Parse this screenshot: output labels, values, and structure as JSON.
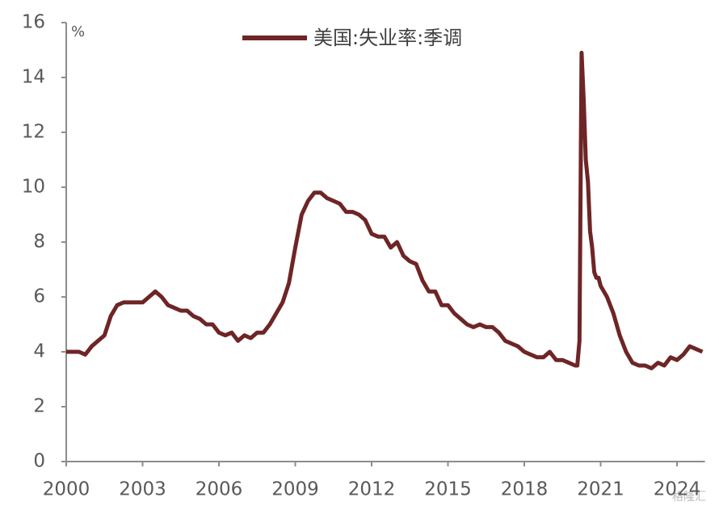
{
  "chart_data": {
    "type": "line",
    "unit_label": "%",
    "watermark": "格隆汇",
    "x": [
      2000,
      2000.25,
      2000.5,
      2000.75,
      2001,
      2001.25,
      2001.5,
      2001.75,
      2002,
      2002.25,
      2002.5,
      2002.75,
      2003,
      2003.25,
      2003.5,
      2003.75,
      2004,
      2004.25,
      2004.5,
      2004.75,
      2005,
      2005.25,
      2005.5,
      2005.75,
      2006,
      2006.25,
      2006.5,
      2006.75,
      2007,
      2007.25,
      2007.5,
      2007.75,
      2008,
      2008.25,
      2008.5,
      2008.75,
      2009,
      2009.25,
      2009.5,
      2009.75,
      2010,
      2010.25,
      2010.5,
      2010.75,
      2011,
      2011.25,
      2011.5,
      2011.75,
      2012,
      2012.25,
      2012.5,
      2012.75,
      2013,
      2013.25,
      2013.5,
      2013.75,
      2014,
      2014.25,
      2014.5,
      2014.75,
      2015,
      2015.25,
      2015.5,
      2015.75,
      2016,
      2016.25,
      2016.5,
      2016.75,
      2017,
      2017.25,
      2017.5,
      2017.75,
      2018,
      2018.25,
      2018.5,
      2018.75,
      2019,
      2019.25,
      2019.5,
      2019.75,
      2020,
      2020.083,
      2020.167,
      2020.25,
      2020.333,
      2020.417,
      2020.5,
      2020.583,
      2020.667,
      2020.75,
      2020.833,
      2020.917,
      2021,
      2021.25,
      2021.5,
      2021.75,
      2022,
      2022.25,
      2022.5,
      2022.75,
      2023,
      2023.25,
      2023.5,
      2023.75,
      2024,
      2024.25,
      2024.5,
      2024.75,
      2025
    ],
    "series": [
      {
        "name": "美国:失业率:季调",
        "color": "#6e2526",
        "values": [
          4.0,
          4.0,
          4.0,
          3.9,
          4.2,
          4.4,
          4.6,
          5.3,
          5.7,
          5.8,
          5.8,
          5.8,
          5.8,
          6.0,
          6.2,
          6.0,
          5.7,
          5.6,
          5.5,
          5.5,
          5.3,
          5.2,
          5.0,
          5.0,
          4.7,
          4.6,
          4.7,
          4.4,
          4.6,
          4.5,
          4.7,
          4.7,
          5.0,
          5.4,
          5.8,
          6.5,
          7.8,
          9.0,
          9.5,
          9.8,
          9.8,
          9.6,
          9.5,
          9.4,
          9.1,
          9.1,
          9.0,
          8.8,
          8.3,
          8.2,
          8.2,
          7.8,
          8.0,
          7.5,
          7.3,
          7.2,
          6.6,
          6.2,
          6.2,
          5.7,
          5.7,
          5.4,
          5.2,
          5.0,
          4.9,
          5.0,
          4.9,
          4.9,
          4.7,
          4.4,
          4.3,
          4.2,
          4.0,
          3.9,
          3.8,
          3.8,
          4.0,
          3.7,
          3.7,
          3.6,
          3.5,
          3.5,
          4.4,
          14.9,
          13.2,
          11.0,
          10.2,
          8.4,
          7.8,
          6.9,
          6.7,
          6.7,
          6.4,
          6.0,
          5.4,
          4.6,
          4.0,
          3.6,
          3.5,
          3.5,
          3.4,
          3.6,
          3.5,
          3.8,
          3.7,
          3.9,
          4.2,
          4.1,
          4.0
        ]
      }
    ],
    "xlim": [
      2000,
      2025.1
    ],
    "xticks": [
      2000,
      2003,
      2006,
      2009,
      2012,
      2015,
      2018,
      2021,
      2024
    ],
    "ylim": [
      0,
      16
    ],
    "yticks": [
      0,
      2,
      4,
      6,
      8,
      10,
      12,
      14,
      16
    ],
    "legend": "top"
  }
}
